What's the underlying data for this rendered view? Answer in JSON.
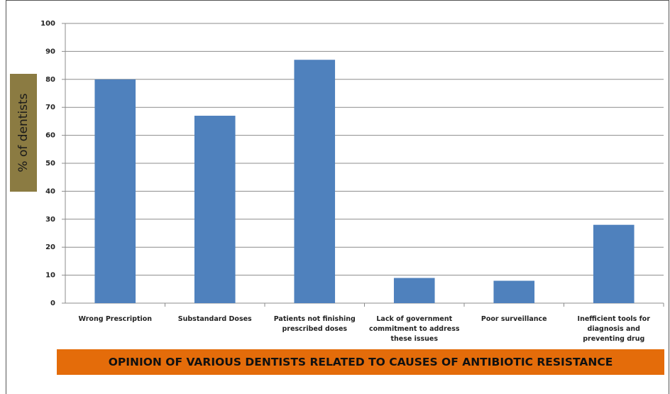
{
  "chart_data": {
    "type": "bar",
    "title": "OPINION OF VARIOUS DENTISTS RELATED TO CAUSES OF ANTIBIOTIC RESISTANCE",
    "y_label": "% of dentists",
    "categories": [
      "Wrong Prescription",
      "Substandard Doses",
      "Patients not finishing prescribed doses",
      "Lack of government commitment to address these issues",
      "Poor surveillance",
      "Inefficient tools for diagnosis and preventing drug"
    ],
    "values": [
      80,
      67,
      87,
      9,
      8,
      28
    ],
    "color": "#4f81bd",
    "ylim": [
      0,
      100
    ],
    "yticks": [
      0,
      10,
      20,
      30,
      40,
      50,
      60,
      70,
      80,
      90,
      100
    ],
    "grid": true
  }
}
